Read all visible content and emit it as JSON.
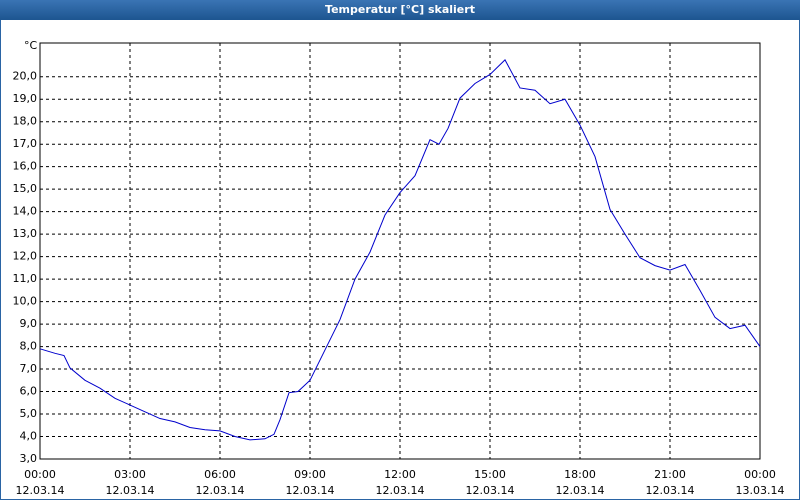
{
  "chart_data": {
    "type": "line",
    "title": "Temperatur [°C] skaliert",
    "y_label": "°C",
    "x": [
      0,
      0.5,
      0.8,
      1,
      1.5,
      2,
      2.5,
      3,
      3.5,
      4,
      4.5,
      5,
      5.5,
      6,
      6.5,
      7,
      7.5,
      7.8,
      8,
      8.3,
      8.6,
      9,
      9.5,
      10,
      10.5,
      11,
      11.5,
      12,
      12.5,
      13,
      13.3,
      13.6,
      14,
      14.5,
      15,
      15.5,
      16,
      16.5,
      17,
      17.5,
      18,
      18.5,
      19,
      19.5,
      20,
      20.5,
      21,
      21.5,
      22,
      22.5,
      23,
      23.5,
      24
    ],
    "series": [
      {
        "name": "Temperatur",
        "color": "#0000cc",
        "values": [
          7.9,
          7.7,
          7.6,
          7.05,
          6.5,
          6.15,
          5.7,
          5.4,
          5.1,
          4.8,
          4.65,
          4.4,
          4.3,
          4.25,
          4.0,
          3.85,
          3.9,
          4.1,
          4.75,
          5.95,
          6.0,
          6.5,
          7.85,
          9.2,
          11.0,
          12.2,
          13.85,
          14.85,
          15.6,
          17.2,
          17.0,
          17.7,
          19.05,
          19.7,
          20.1,
          20.75,
          19.5,
          19.4,
          18.8,
          19.0,
          17.85,
          16.45,
          14.1,
          13.0,
          11.95,
          11.6,
          11.4,
          11.65,
          10.5,
          9.3,
          8.8,
          8.95,
          8.0
        ]
      }
    ],
    "xlim": [
      0,
      24
    ],
    "ylim": [
      3,
      21.5
    ],
    "xticks": [
      {
        "value": 0,
        "label": [
          "00:00",
          "12.03.14"
        ]
      },
      {
        "value": 3,
        "label": [
          "03:00",
          "12.03.14"
        ]
      },
      {
        "value": 6,
        "label": [
          "06:00",
          "12.03.14"
        ]
      },
      {
        "value": 9,
        "label": [
          "09:00",
          "12.03.14"
        ]
      },
      {
        "value": 12,
        "label": [
          "12:00",
          "12.03.14"
        ]
      },
      {
        "value": 15,
        "label": [
          "15:00",
          "12.03.14"
        ]
      },
      {
        "value": 18,
        "label": [
          "18:00",
          "12.03.14"
        ]
      },
      {
        "value": 21,
        "label": [
          "21:00",
          "12.03.14"
        ]
      },
      {
        "value": 24,
        "label": [
          "00:00",
          "13.03.14"
        ]
      }
    ],
    "yticks": [
      {
        "value": 3,
        "label": "3,0"
      },
      {
        "value": 4,
        "label": "4,0"
      },
      {
        "value": 5,
        "label": "5,0"
      },
      {
        "value": 6,
        "label": "6,0"
      },
      {
        "value": 7,
        "label": "7,0"
      },
      {
        "value": 8,
        "label": "8,0"
      },
      {
        "value": 9,
        "label": "9,0"
      },
      {
        "value": 10,
        "label": "10,0"
      },
      {
        "value": 11,
        "label": "11,0"
      },
      {
        "value": 12,
        "label": "12,0"
      },
      {
        "value": 13,
        "label": "13,0"
      },
      {
        "value": 14,
        "label": "14,0"
      },
      {
        "value": 15,
        "label": "15,0"
      },
      {
        "value": 16,
        "label": "16,0"
      },
      {
        "value": 17,
        "label": "17,0"
      },
      {
        "value": 18,
        "label": "18,0"
      },
      {
        "value": 19,
        "label": "19,0"
      },
      {
        "value": 20,
        "label": "20,0"
      }
    ],
    "grid": true
  }
}
